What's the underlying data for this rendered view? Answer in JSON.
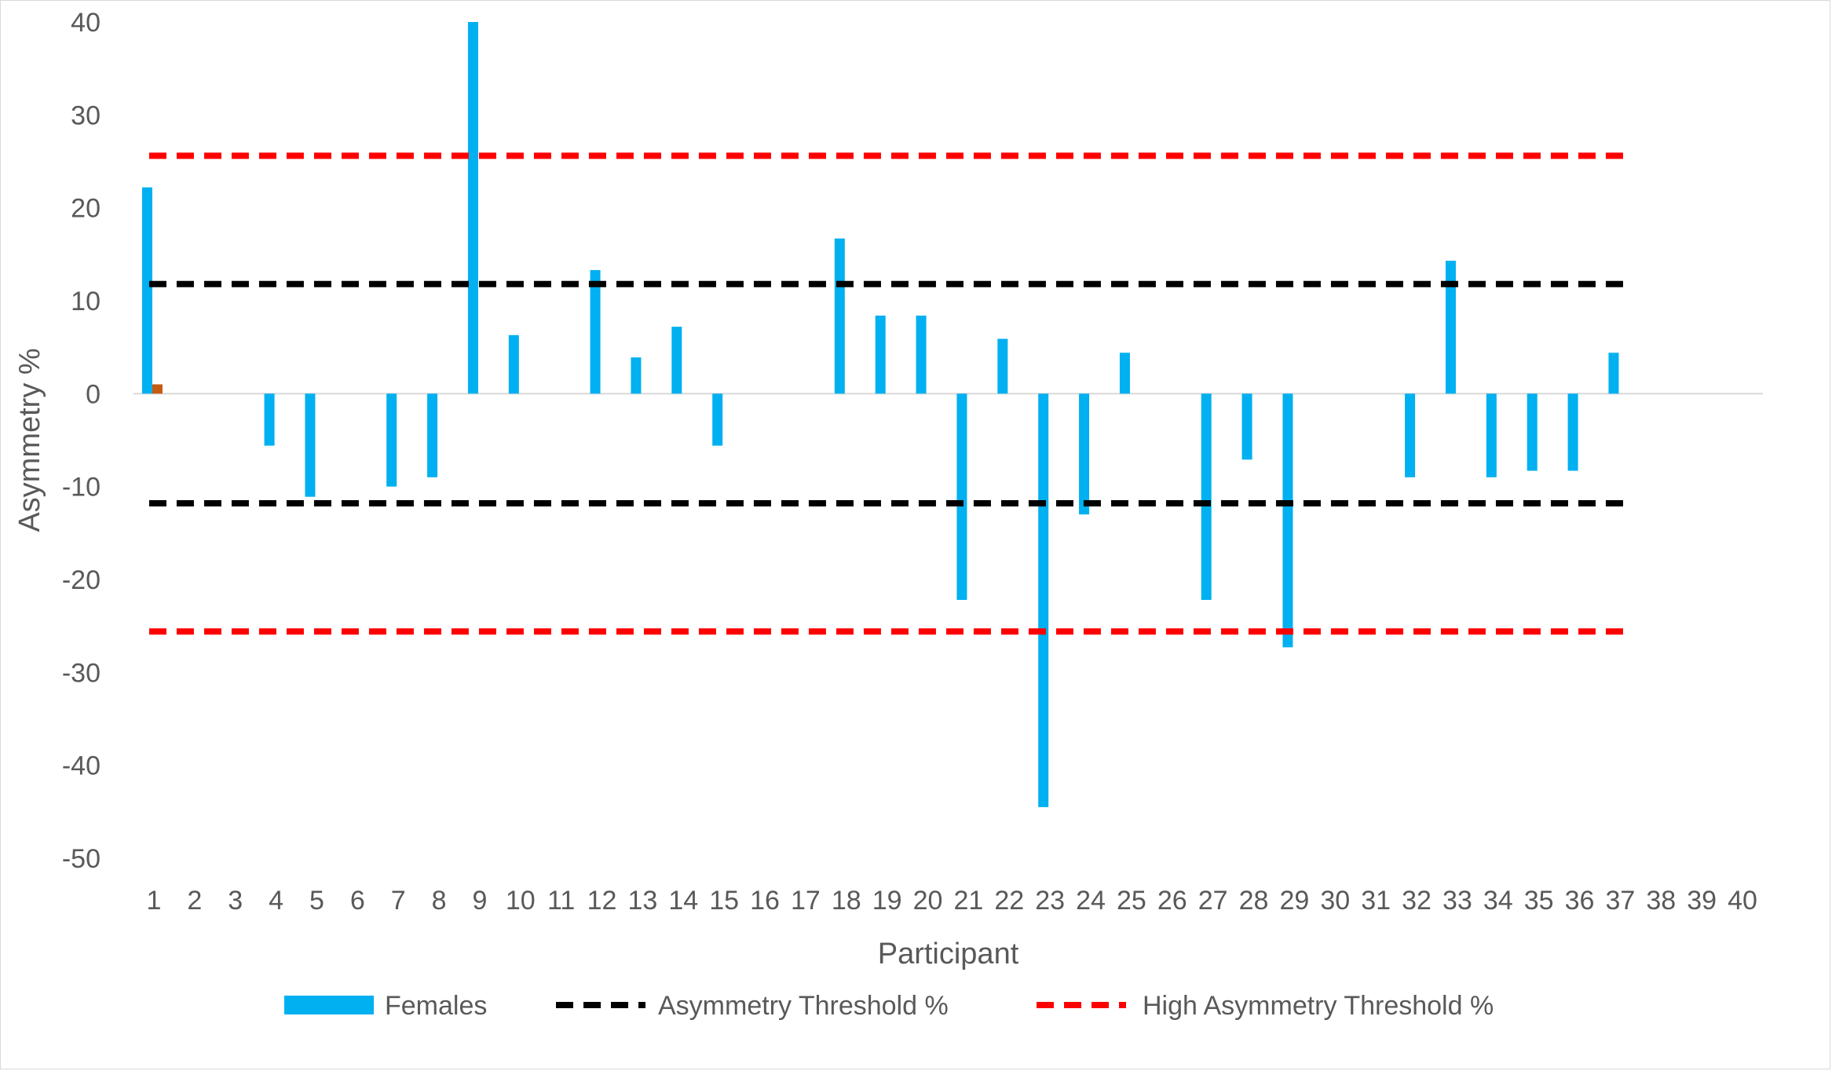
{
  "chart_data": {
    "type": "bar",
    "xlabel": "Participant",
    "ylabel": "Asymmetry %",
    "ylim": [
      -50,
      40
    ],
    "yticks": [
      40,
      30,
      20,
      10,
      0,
      -10,
      -20,
      -30,
      -40,
      -50
    ],
    "categories": [
      "1",
      "2",
      "3",
      "4",
      "5",
      "6",
      "7",
      "8",
      "9",
      "10",
      "11",
      "12",
      "13",
      "14",
      "15",
      "16",
      "17",
      "18",
      "19",
      "20",
      "21",
      "22",
      "23",
      "24",
      "25",
      "26",
      "27",
      "28",
      "29",
      "30",
      "31",
      "32",
      "33",
      "34",
      "35",
      "36",
      "37",
      "38",
      "39",
      "40"
    ],
    "series": [
      {
        "name": "Females",
        "color": "#00b0f0",
        "values": [
          22.2,
          null,
          null,
          -5.6,
          -11.1,
          null,
          -10.0,
          -9.0,
          40.0,
          6.3,
          null,
          13.3,
          3.9,
          7.2,
          -5.6,
          null,
          null,
          16.7,
          8.4,
          8.4,
          -22.2,
          5.9,
          -44.5,
          -13.0,
          4.4,
          null,
          -22.2,
          -7.1,
          -27.3,
          null,
          null,
          -9.0,
          14.3,
          -9.0,
          -8.3,
          -8.3,
          4.4,
          null,
          null,
          null
        ]
      },
      {
        "name": "",
        "color": "#c55a11",
        "values": [
          1.0,
          null,
          null,
          null,
          null,
          null,
          null,
          null,
          null,
          null,
          null,
          null,
          null,
          null,
          null,
          null,
          null,
          null,
          null,
          null,
          null,
          null,
          null,
          null,
          null,
          null,
          null,
          null,
          null,
          null,
          null,
          null,
          null,
          null,
          null,
          null,
          null,
          null,
          null,
          null
        ]
      }
    ],
    "thresholds": [
      {
        "name": "Asymmetry Threshold %",
        "color": "#000000",
        "values": [
          11.8,
          -11.8
        ],
        "x_range": [
          1,
          37
        ]
      },
      {
        "name": "High Asymmetry Threshold %",
        "color": "#ff0000",
        "values": [
          25.6,
          -25.6
        ],
        "x_range": [
          1,
          37
        ]
      }
    ],
    "legend": {
      "position": "bottom",
      "entries": [
        {
          "label": "Females",
          "style": "bar",
          "color": "#00b0f0"
        },
        {
          "label": "Asymmetry Threshold %",
          "style": "dashed",
          "color": "#000000"
        },
        {
          "label": "High Asymmetry Threshold %",
          "style": "dashed",
          "color": "#ff0000"
        }
      ]
    }
  }
}
